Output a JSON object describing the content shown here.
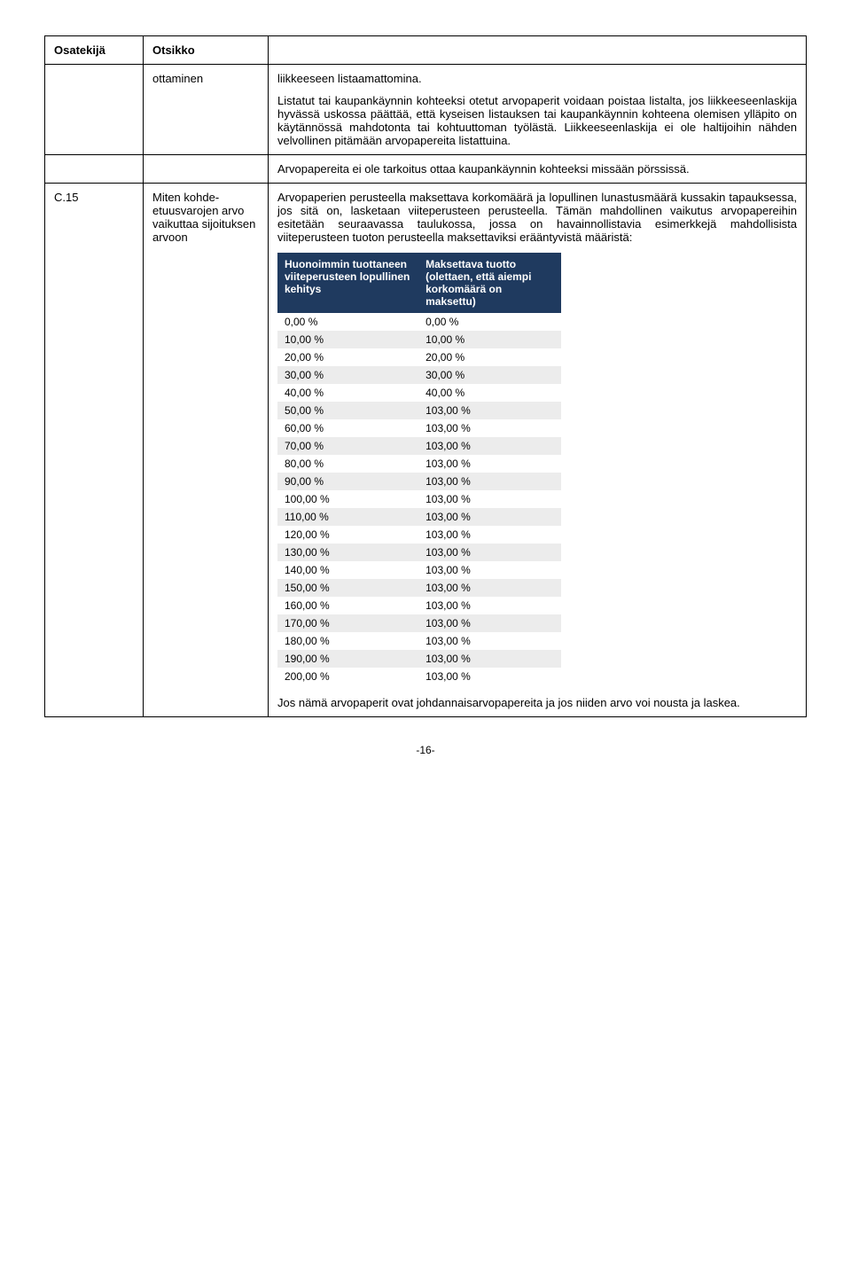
{
  "header": {
    "col1": "Osatekijä",
    "col2": "Otsikko"
  },
  "row1": {
    "col2": "ottaminen",
    "para1": "liikkeeseen listaamattomina.",
    "para2": "Listatut tai kaupankäynnin kohteeksi otetut arvopaperit voidaan poistaa listalta, jos liikkeeseenlaskija hyvässä uskossa päättää, että kyseisen listauksen tai kaupankäynnin kohteena olemisen ylläpito on käytännössä mahdotonta tai kohtuuttoman työlästä. Liikkeeseenlaskija ei ole haltijoihin nähden velvollinen pitämään arvopapereita listattuina."
  },
  "row2": {
    "para": "Arvopapereita ei ole tarkoitus ottaa kaupankäynnin kohteeksi missään pörssissä."
  },
  "row3": {
    "col1": "C.15",
    "col2": "Miten kohde-etuusvarojen arvo vaikuttaa sijoituksen arvoon",
    "para1": "Arvopaperien perusteella maksettava korkomäärä ja lopullinen lunastusmäärä kussakin tapauksessa, jos sitä on, lasketaan viiteperusteen perusteella. Tämän mahdollinen vaikutus arvopapereihin esitetään seuraavassa taulukossa, jossa on havainnollistavia esimerkkejä mahdollisista viiteperusteen tuoton perusteella maksettaviksi erääntyvistä määristä:",
    "table": {
      "header1": "Huonoimmin tuottaneen viiteperusteen lopullinen kehitys",
      "header2": "Maksettava tuotto (olettaen, että aiempi korkomäärä on maksettu)",
      "rows": [
        [
          "0,00 %",
          "0,00 %"
        ],
        [
          "10,00 %",
          "10,00 %"
        ],
        [
          "20,00 %",
          "20,00 %"
        ],
        [
          "30,00 %",
          "30,00 %"
        ],
        [
          "40,00 %",
          "40,00 %"
        ],
        [
          "50,00 %",
          "103,00 %"
        ],
        [
          "60,00 %",
          "103,00 %"
        ],
        [
          "70,00 %",
          "103,00 %"
        ],
        [
          "80,00 %",
          "103,00 %"
        ],
        [
          "90,00 %",
          "103,00 %"
        ],
        [
          "100,00 %",
          "103,00 %"
        ],
        [
          "110,00 %",
          "103,00 %"
        ],
        [
          "120,00 %",
          "103,00 %"
        ],
        [
          "130,00 %",
          "103,00 %"
        ],
        [
          "140,00 %",
          "103,00 %"
        ],
        [
          "150,00 %",
          "103,00 %"
        ],
        [
          "160,00 %",
          "103,00 %"
        ],
        [
          "170,00 %",
          "103,00 %"
        ],
        [
          "180,00 %",
          "103,00 %"
        ],
        [
          "190,00 %",
          "103,00 %"
        ],
        [
          "200,00 %",
          "103,00 %"
        ]
      ]
    },
    "para2": "Jos nämä arvopaperit ovat johdannaisarvopapereita ja jos niiden arvo voi nousta ja laskea."
  },
  "pageNumber": "-16-"
}
